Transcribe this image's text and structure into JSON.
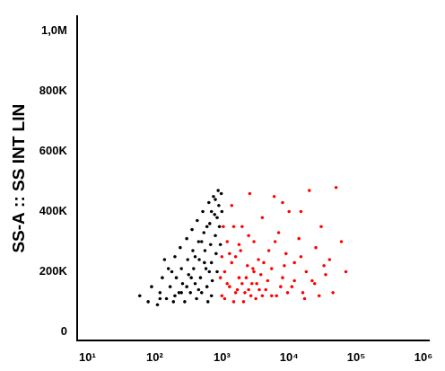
{
  "chart_data": {
    "type": "scatter",
    "y_label": "SS-A :: SS INT LIN",
    "log": "x",
    "grid": false,
    "xlim": [
      7,
      1200000
    ],
    "xticks": [
      {
        "value": 10,
        "label": "10¹"
      },
      {
        "value": 100,
        "label": "10²"
      },
      {
        "value": 1000,
        "label": "10³"
      },
      {
        "value": 10000,
        "label": "10⁴"
      },
      {
        "value": 100000,
        "label": "10⁵"
      },
      {
        "value": 1000000,
        "label": "10⁶"
      }
    ],
    "ylim": [
      -30000,
      1050000
    ],
    "yticks": [
      0,
      {
        "value": 200000,
        "label": "200K"
      },
      {
        "value": 400000,
        "label": "400K"
      },
      {
        "value": 600000,
        "label": "600K"
      },
      {
        "value": 800000,
        "label": "800K"
      },
      {
        "value": 1000000,
        "label": "1,0M"
      }
    ],
    "series": [
      {
        "color": "#000000",
        "x": [
          60,
          80,
          90,
          110,
          120,
          130,
          150,
          160,
          170,
          190,
          200,
          210,
          230,
          240,
          250,
          260,
          280,
          300,
          310,
          320,
          340,
          360,
          370,
          380,
          400,
          420,
          430,
          450,
          460,
          480,
          500,
          520,
          540,
          560,
          580,
          600,
          620,
          640,
          660,
          680,
          700,
          720,
          750,
          780,
          800,
          820,
          850,
          880,
          900,
          920,
          950,
          980,
          1000,
          700,
          140,
          200,
          350,
          450,
          550,
          650,
          800,
          300,
          250,
          180,
          400,
          500,
          600,
          700,
          850,
          120
        ],
        "values": [
          120000,
          100000,
          150000,
          90000,
          130000,
          180000,
          110000,
          210000,
          150000,
          100000,
          250000,
          180000,
          130000,
          280000,
          210000,
          160000,
          100000,
          310000,
          240000,
          190000,
          130000,
          340000,
          270000,
          210000,
          160000,
          110000,
          370000,
          300000,
          240000,
          180000,
          130000,
          400000,
          330000,
          270000,
          210000,
          150000,
          100000,
          430000,
          360000,
          290000,
          230000,
          170000,
          450000,
          390000,
          320000,
          260000,
          200000,
          470000,
          420000,
          350000,
          290000,
          460000,
          400000,
          120000,
          240000,
          120000,
          180000,
          140000,
          230000,
          200000,
          440000,
          150000,
          130000,
          200000,
          250000,
          300000,
          350000,
          400000,
          380000,
          110000
        ]
      },
      {
        "color": "#ff0000",
        "x": [
          1000,
          1100,
          1200,
          1300,
          1400,
          1500,
          1600,
          1800,
          2000,
          2200,
          2400,
          2600,
          2800,
          3000,
          3200,
          3500,
          3800,
          4000,
          4500,
          5000,
          5500,
          6000,
          6500,
          7000,
          8000,
          9000,
          10000,
          11000,
          12000,
          14000,
          16000,
          18000,
          20000,
          22000,
          25000,
          28000,
          30000,
          35000,
          40000,
          45000,
          50000,
          1100,
          1300,
          1500,
          1700,
          1900,
          2100,
          2300,
          2500,
          2700,
          2900,
          3300,
          3600,
          4200,
          4800,
          5500,
          6200,
          7500,
          8500,
          9500,
          12000,
          15000,
          17000,
          24000,
          33000,
          1200,
          1400,
          1600,
          1800,
          2000,
          1000,
          950,
          1050,
          2500,
          3000,
          4000,
          60000,
          70000,
          15000,
          8000
        ],
        "values": [
          120000,
          200000,
          300000,
          150000,
          420000,
          100000,
          250000,
          180000,
          350000,
          130000,
          220000,
          460000,
          160000,
          300000,
          110000,
          240000,
          190000,
          380000,
          140000,
          270000,
          210000,
          450000,
          120000,
          330000,
          180000,
          260000,
          400000,
          150000,
          230000,
          310000,
          130000,
          200000,
          470000,
          170000,
          280000,
          120000,
          350000,
          190000,
          240000,
          130000,
          480000,
          110000,
          260000,
          350000,
          140000,
          270000,
          100000,
          180000,
          320000,
          120000,
          210000,
          160000,
          140000,
          230000,
          170000,
          120000,
          300000,
          150000,
          220000,
          130000,
          170000,
          250000,
          110000,
          160000,
          220000,
          160000,
          230000,
          130000,
          290000,
          160000,
          250000,
          180000,
          350000,
          140000,
          200000,
          120000,
          300000,
          200000,
          400000,
          430000
        ]
      }
    ]
  }
}
